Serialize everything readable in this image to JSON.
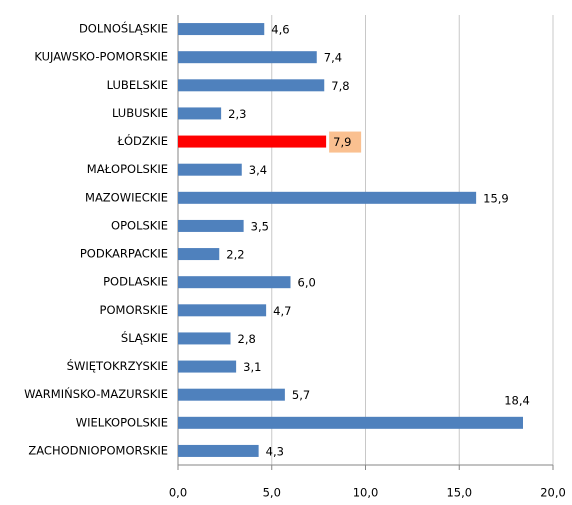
{
  "chart_data": {
    "type": "hbar",
    "categories": [
      "DOLNOŚLĄSKIE",
      "KUJAWSKO-POMORSKIE",
      "LUBELSKIE",
      "LUBUSKIE",
      "ŁÓDZKIE",
      "MAŁOPOLSKIE",
      "MAZOWIECKIE",
      "OPOLSKIE",
      "PODKARPACKIE",
      "PODLASKIE",
      "POMORSKIE",
      "ŚLĄSKIE",
      "ŚWIĘTOKRZYSKIE",
      "WARMIŃSKO-MAZURSKIE",
      "WIELKOPOLSKIE",
      "ZACHODNIOPOMORSKIE"
    ],
    "values": [
      4.6,
      7.4,
      7.8,
      2.3,
      7.9,
      3.4,
      15.9,
      3.5,
      2.2,
      6.0,
      4.7,
      2.8,
      3.1,
      5.7,
      18.4,
      4.3
    ],
    "value_labels": [
      "4,6",
      "7,4",
      "7,8",
      "2,3",
      "7,9",
      "3,4",
      "15,9",
      "3,5",
      "2,2",
      "6,0",
      "4,7",
      "2,8",
      "3,1",
      "5,7",
      "18,4",
      "4,3"
    ],
    "color": "#4f81bd",
    "highlight": {
      "category": "ŁÓDZKIE",
      "color": "#ff0000",
      "label_background": "#fac090"
    },
    "xlim": [
      0,
      20
    ],
    "xticks": [
      {
        "value": 0,
        "label": "0,0"
      },
      {
        "value": 5,
        "label": "5,0"
      },
      {
        "value": 10,
        "label": "10,0"
      },
      {
        "value": 15,
        "label": "15,0"
      },
      {
        "value": 20,
        "label": "20,0"
      }
    ],
    "grid": true
  }
}
